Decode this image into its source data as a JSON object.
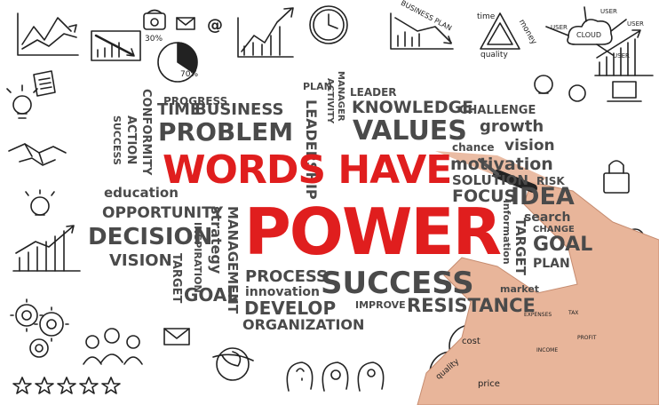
{
  "headline": {
    "line1": "WORDS HAVE",
    "line2": "POWER"
  },
  "words": {
    "plan": "PLAN",
    "activity": "ACTIVITY",
    "leader": "LEADER",
    "manager": "MANAGER",
    "progress": "PROGRESS",
    "conformity": "CONFORMITY",
    "time": "TIME",
    "business": "BUSINESS",
    "leadership": "LEADERSHIP",
    "knowledge": "KNOWLEDGE",
    "challenge": "CHALLENGE",
    "action": "ACTION",
    "success_vertical": "SUCCESS",
    "problem": "PROBLEM",
    "values": "VALUES",
    "growth": "growth",
    "chance": "chance",
    "vision_right": "vision",
    "motivation": "motivation",
    "solution": "SOLUTION",
    "risk": "RISK",
    "education": "education",
    "focus": "FOCUS",
    "idea": "IDEA",
    "search": "search",
    "change": "CHANGE",
    "goal_right": "GOAL",
    "plan_right": "PLAN",
    "opportunity": "OPPORTUNITY",
    "strategy": "strategy",
    "inspiration": "INSPIRATION",
    "management": "MANAGEMENT",
    "information": "information",
    "target_right": "TARGET",
    "decision": "DECISION",
    "vision_left": "VISION",
    "target_left": "TARGET",
    "goal_left": "GOAL",
    "process": "PROCESS",
    "innovation": "innovation",
    "success": "SUCCESS",
    "market": "market",
    "develop": "DEVELOP",
    "improve": "IMPROVE",
    "resistance": "RESISTANCE",
    "organization": "ORGANIZATION"
  },
  "doodle_labels": {
    "pct30": "30%",
    "pct70": "70%",
    "at": "@",
    "business_plan": "BUSINESS PLAN",
    "time": "time",
    "money": "money",
    "quality": "quality",
    "user1": "USER",
    "user2": "USER",
    "user3": "USER",
    "user4": "USER",
    "cloud": "CLOUD",
    "cost": "cost",
    "quality2": "quality",
    "price": "price",
    "expenses": "EXPENSES",
    "tax": "TAX",
    "income": "INCOME",
    "profit": "PROFIT"
  },
  "colors": {
    "headline": "#e01e1e",
    "words": "#4a4a4a",
    "sketch": "#222222"
  }
}
